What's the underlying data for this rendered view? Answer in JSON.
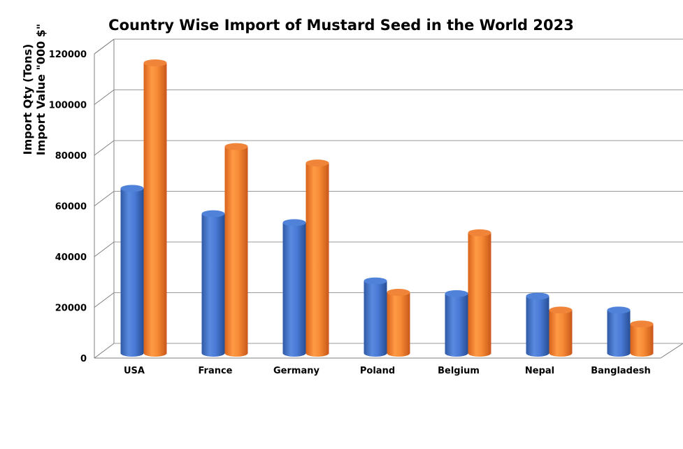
{
  "chart_data": {
    "type": "bar",
    "title": "Country Wise Import of Mustard Seed in the World 2023",
    "ylabel_line1": "Import Qty (Tons)",
    "ylabel_line2": "Import Value \"000 $\"",
    "categories": [
      "USA",
      "France",
      "Germany",
      "Poland",
      "Belgium",
      "Nepal",
      "Bangladesh"
    ],
    "series": [
      {
        "values": [
          65000,
          55000,
          51500,
          28500,
          23500,
          22500,
          17000
        ]
      },
      {
        "values": [
          114500,
          81500,
          75000,
          24000,
          47500,
          17000,
          11500
        ]
      }
    ],
    "ylim": [
      0,
      120000
    ],
    "yticks": [
      "0",
      "20000",
      "40000",
      "60000",
      "80000",
      "100000",
      "120000"
    ],
    "grid": true,
    "colors": {
      "series1": "#4472C4",
      "series2": "#ED7D31"
    }
  }
}
